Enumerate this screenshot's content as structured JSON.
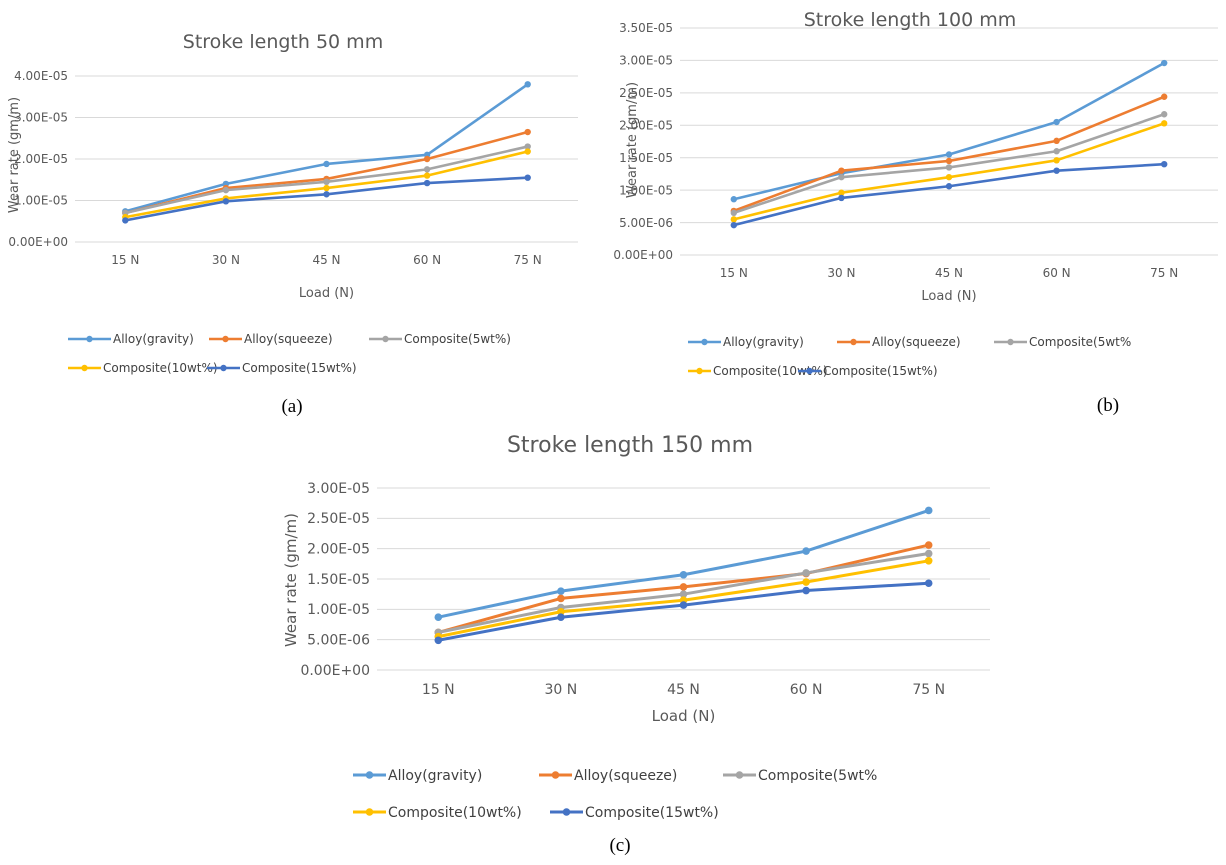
{
  "chart_data": [
    {
      "type": "line",
      "title": "Stroke length 50 mm",
      "xlabel": "Load (N)",
      "ylabel": "Wear rate (gm/m)",
      "categories": [
        "15 N",
        "30 N",
        "45 N",
        "60 N",
        "75 N"
      ],
      "ylim": [
        0,
        4e-05
      ],
      "yticks": [
        "0.00E+00",
        "1.00E-05",
        "2.00E-05",
        "3.00E-05",
        "4.00E-05"
      ],
      "grid": true,
      "legend": "bottom",
      "caption": "(a)",
      "series": [
        {
          "name": "Alloy(gravity)",
          "color": "#5b9bd5",
          "values": [
            7.4e-06,
            1.4e-05,
            1.88e-05,
            2.1e-05,
            3.8e-05
          ]
        },
        {
          "name": "Alloy(squeeze)",
          "color": "#ed7d31",
          "values": [
            7e-06,
            1.3e-05,
            1.52e-05,
            2e-05,
            2.65e-05
          ]
        },
        {
          "name": "Composite(5wt%)",
          "color": "#a5a5a5",
          "values": [
            7e-06,
            1.25e-05,
            1.45e-05,
            1.75e-05,
            2.3e-05
          ]
        },
        {
          "name": "Composite(10wt%)",
          "color": "#ffc000",
          "values": [
            6e-06,
            1.05e-05,
            1.3e-05,
            1.6e-05,
            2.18e-05
          ]
        },
        {
          "name": "Composite(15wt%)",
          "color": "#4472c4",
          "values": [
            5.2e-06,
            9.8e-06,
            1.15e-05,
            1.42e-05,
            1.55e-05
          ]
        }
      ]
    },
    {
      "type": "line",
      "title": "Stroke length 100 mm",
      "xlabel": "Load (N)",
      "ylabel": "Wear rate (gm/m)",
      "categories": [
        "15 N",
        "30 N",
        "45 N",
        "60 N",
        "75 N"
      ],
      "ylim": [
        0,
        3.5e-05
      ],
      "yticks": [
        "0.00E+00",
        "5.00E-06",
        "1.00E-05",
        "1.50E-05",
        "2.00E-05",
        "2.50E-05",
        "3.00E-05",
        "3.50E-05"
      ],
      "grid": true,
      "legend": "bottom",
      "caption": "(b)",
      "series": [
        {
          "name": "Alloy(gravity)",
          "color": "#5b9bd5",
          "values": [
            8.6e-06,
            1.26e-05,
            1.55e-05,
            2.05e-05,
            2.96e-05
          ]
        },
        {
          "name": "Alloy(squeeze)",
          "color": "#ed7d31",
          "values": [
            6.8e-06,
            1.3e-05,
            1.45e-05,
            1.76e-05,
            2.44e-05
          ]
        },
        {
          "name": "Composite(5wt%",
          "color": "#a5a5a5",
          "values": [
            6.5e-06,
            1.2e-05,
            1.35e-05,
            1.6e-05,
            2.17e-05
          ]
        },
        {
          "name": "Composite(10wt%)",
          "color": "#ffc000",
          "values": [
            5.5e-06,
            9.6e-06,
            1.2e-05,
            1.46e-05,
            2.03e-05
          ]
        },
        {
          "name": "Composite(15wt%)",
          "color": "#4472c4",
          "values": [
            4.6e-06,
            8.8e-06,
            1.06e-05,
            1.3e-05,
            1.4e-05
          ]
        }
      ]
    },
    {
      "type": "line",
      "title": "Stroke length 150 mm",
      "xlabel": "Load (N)",
      "ylabel": "Wear rate (gm/m)",
      "categories": [
        "15 N",
        "30 N",
        "45 N",
        "60 N",
        "75 N"
      ],
      "ylim": [
        0,
        3e-05
      ],
      "yticks": [
        "0.00E+00",
        "5.00E-06",
        "1.00E-05",
        "1.50E-05",
        "2.00E-05",
        "2.50E-05",
        "3.00E-05"
      ],
      "grid": true,
      "legend": "bottom",
      "caption": "(c)",
      "series": [
        {
          "name": "Alloy(gravity)",
          "color": "#5b9bd5",
          "values": [
            8.7e-06,
            1.3e-05,
            1.57e-05,
            1.96e-05,
            2.63e-05
          ]
        },
        {
          "name": "Alloy(squeeze)",
          "color": "#ed7d31",
          "values": [
            6.2e-06,
            1.18e-05,
            1.37e-05,
            1.59e-05,
            2.06e-05
          ]
        },
        {
          "name": "Composite(5wt%",
          "color": "#a5a5a5",
          "values": [
            6.2e-06,
            1.03e-05,
            1.25e-05,
            1.6e-05,
            1.92e-05
          ]
        },
        {
          "name": "Composite(10wt%)",
          "color": "#ffc000",
          "values": [
            5.5e-06,
            9.6e-06,
            1.15e-05,
            1.45e-05,
            1.8e-05
          ]
        },
        {
          "name": "Composite(15wt%)",
          "color": "#4472c4",
          "values": [
            4.9e-06,
            8.7e-06,
            1.07e-05,
            1.31e-05,
            1.43e-05
          ]
        }
      ]
    }
  ]
}
